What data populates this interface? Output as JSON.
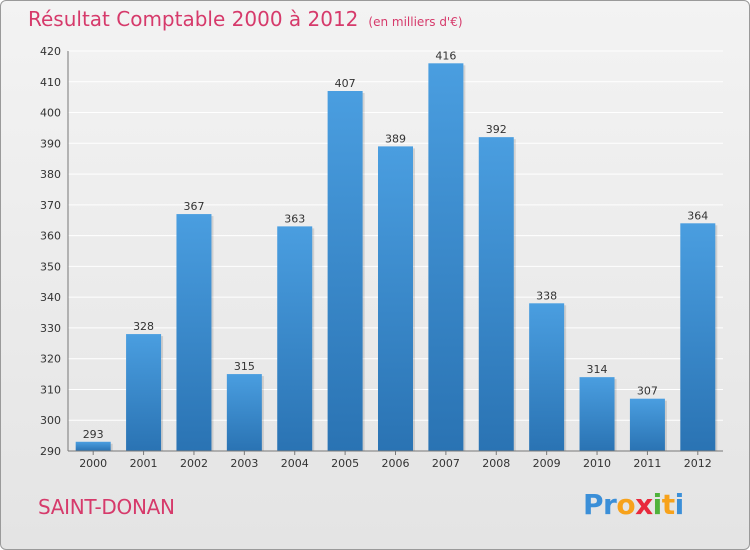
{
  "chart_data": {
    "type": "bar",
    "title": "Résultat Comptable 2000 à 2012",
    "unit_note": "(en milliers d'€)",
    "categories": [
      "2000",
      "2001",
      "2002",
      "2003",
      "2004",
      "2005",
      "2006",
      "2007",
      "2008",
      "2009",
      "2010",
      "2011",
      "2012"
    ],
    "values": [
      293,
      328,
      367,
      315,
      363,
      407,
      389,
      416,
      392,
      338,
      314,
      307,
      364
    ],
    "ylim": [
      290,
      420
    ],
    "yticks": [
      290,
      300,
      310,
      320,
      330,
      340,
      350,
      360,
      370,
      380,
      390,
      400,
      410,
      420
    ],
    "xlabel": "",
    "ylabel": "",
    "grid": true,
    "bar_color": "#4a9ee0",
    "bar_color_dark": "#2a73b3"
  },
  "commune": "SAINT-DONAN",
  "logo": {
    "text": "Proxiti",
    "letters": [
      {
        "char": "P",
        "color": "#3b8fd8"
      },
      {
        "char": "r",
        "color": "#3b8fd8"
      },
      {
        "char": "o",
        "color": "#f7a21b"
      },
      {
        "char": "x",
        "color": "#e8293c"
      },
      {
        "char": "i",
        "color": "#4fb23b"
      },
      {
        "char": "t",
        "color": "#f7a21b"
      },
      {
        "char": "i",
        "color": "#3b8fd8"
      }
    ]
  },
  "colors": {
    "accent": "#d63a6b",
    "grid": "#ffffff",
    "axis_text": "#333333"
  }
}
